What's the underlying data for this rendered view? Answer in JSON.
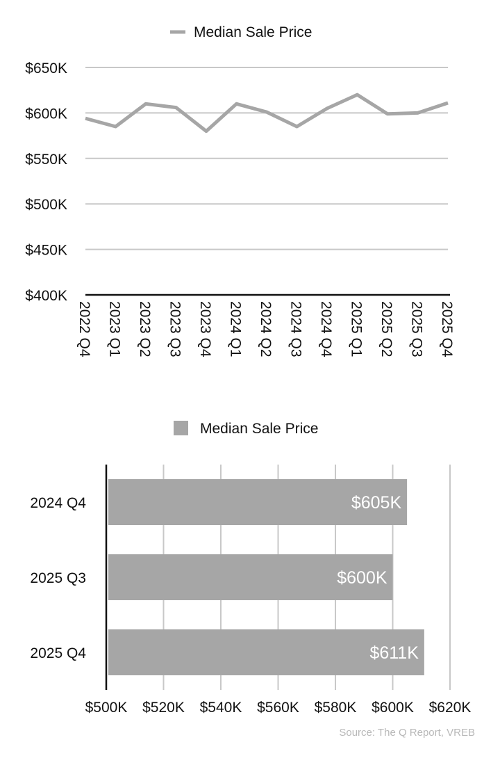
{
  "chart_data": [
    {
      "type": "line",
      "legend": {
        "label": "Median Sale Price",
        "position": "top-center"
      },
      "categories": [
        "2022 Q4",
        "2023 Q1",
        "2023 Q2",
        "2023 Q3",
        "2023 Q4",
        "2024 Q1",
        "2024 Q2",
        "2024 Q3",
        "2024 Q4",
        "2025 Q1",
        "2025 Q2",
        "2025 Q3",
        "2025 Q4"
      ],
      "series": [
        {
          "name": "Median Sale Price",
          "values": [
            594,
            585,
            610,
            606,
            580,
            610,
            601,
            585,
            605,
            620,
            599,
            600,
            611
          ]
        }
      ],
      "y_ticks": [
        "$400K",
        "$450K",
        "$500K",
        "$550K",
        "$600K",
        "$650K"
      ],
      "ylim": [
        400,
        650
      ],
      "grid": "horizontal",
      "color": "#a6a6a6"
    },
    {
      "type": "bar",
      "orientation": "horizontal",
      "legend": {
        "label": "Median Sale Price",
        "position": "top-center"
      },
      "categories": [
        "2024 Q4",
        "2025 Q3",
        "2025 Q4"
      ],
      "series": [
        {
          "name": "Median Sale Price",
          "values": [
            605,
            600,
            611
          ],
          "labels": [
            "$605K",
            "$600K",
            "$611K"
          ]
        }
      ],
      "x_ticks": [
        "$500K",
        "$520K",
        "$540K",
        "$560K",
        "$580K",
        "$600K",
        "$620K"
      ],
      "xlim": [
        500,
        620
      ],
      "grid": "vertical",
      "color": "#a6a6a6"
    }
  ],
  "source": "Source: The Q Report, VREB"
}
